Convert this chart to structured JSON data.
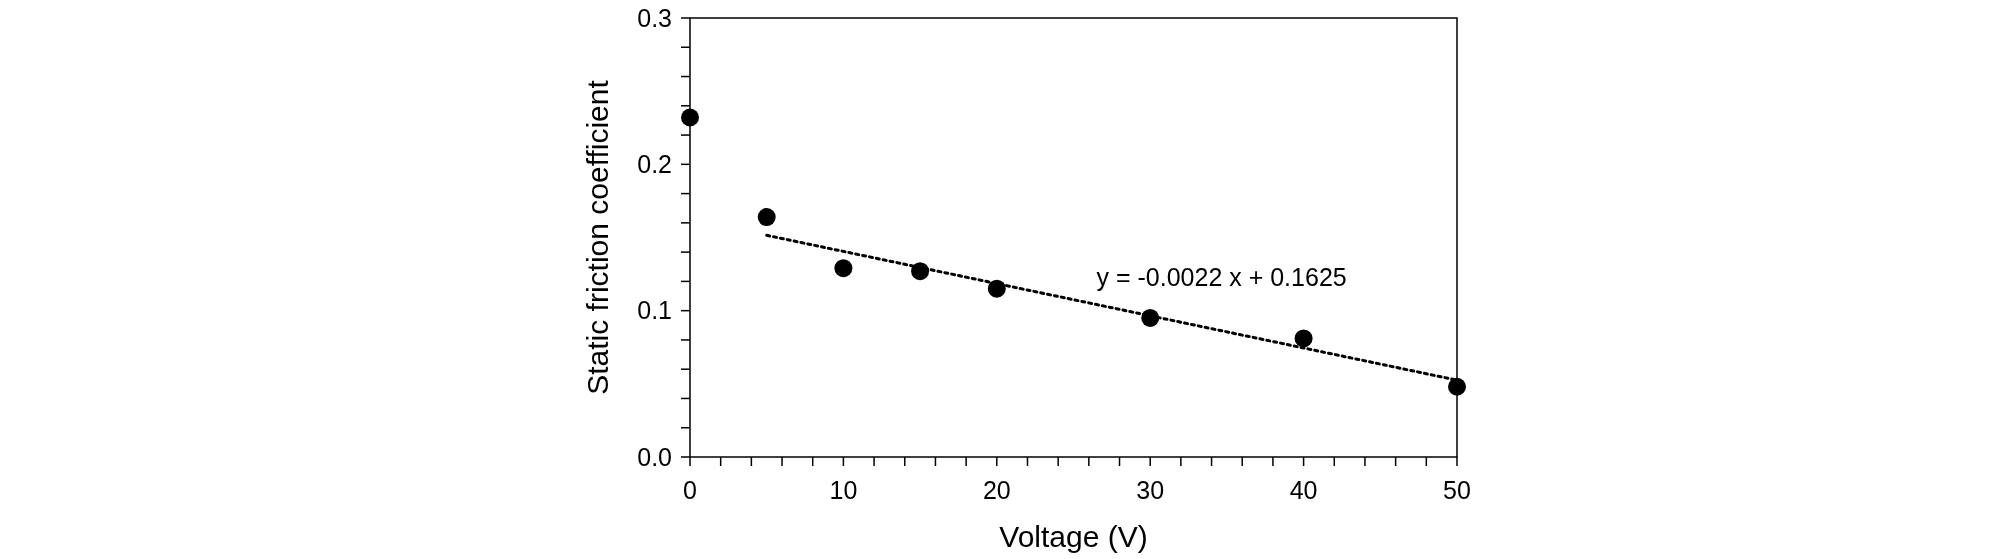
{
  "chart_data": {
    "type": "scatter",
    "xlabel": "Voltage (V)",
    "ylabel": "Static friction coefficient",
    "x": [
      0,
      5,
      10,
      15,
      20,
      30,
      40,
      50
    ],
    "xlim": [
      0,
      50
    ],
    "ylim": [
      0,
      0.3
    ],
    "xticks": [
      0,
      {
        "value": 2,
        "label": null
      },
      {
        "value": 4,
        "label": null
      },
      {
        "value": 6,
        "label": null
      },
      {
        "value": 8,
        "label": null
      },
      10,
      {
        "value": 12,
        "label": null
      },
      {
        "value": 14,
        "label": null
      },
      {
        "value": 16,
        "label": null
      },
      {
        "value": 18,
        "label": null
      },
      20,
      {
        "value": 22,
        "label": null
      },
      {
        "value": 24,
        "label": null
      },
      {
        "value": 26,
        "label": null
      },
      {
        "value": 28,
        "label": null
      },
      30,
      {
        "value": 32,
        "label": null
      },
      {
        "value": 34,
        "label": null
      },
      {
        "value": 36,
        "label": null
      },
      {
        "value": 38,
        "label": null
      },
      40,
      {
        "value": 42,
        "label": null
      },
      {
        "value": 44,
        "label": null
      },
      {
        "value": 46,
        "label": null
      },
      {
        "value": 48,
        "label": null
      },
      50
    ],
    "yticks": [
      {
        "value": 0,
        "label": "0.0"
      },
      {
        "value": 0.02,
        "label": null
      },
      {
        "value": 0.04,
        "label": null
      },
      {
        "value": 0.06,
        "label": null
      },
      {
        "value": 0.08,
        "label": null
      },
      0.1,
      {
        "value": 0.12,
        "label": null
      },
      {
        "value": 0.14,
        "label": null
      },
      {
        "value": 0.16,
        "label": null
      },
      {
        "value": 0.18,
        "label": null
      },
      0.2,
      {
        "value": 0.22,
        "label": null
      },
      {
        "value": 0.24,
        "label": null
      },
      {
        "value": 0.26,
        "label": null
      },
      {
        "value": 0.28,
        "label": null
      },
      0.3
    ],
    "grid": false,
    "series": [
      {
        "color": "#000000",
        "marker": "circle",
        "values": [
          0.232,
          0.164,
          0.129,
          0.127,
          0.115,
          0.095,
          0.081,
          0.048
        ]
      },
      {
        "type": "line",
        "color": "#000000",
        "marker": "none",
        "line_style": "dotted",
        "x": [
          5,
          50
        ],
        "values": [
          0.1515,
          0.0525
        ]
      }
    ],
    "annotations": [
      "y = -0.0022 x + 0.1625"
    ]
  }
}
